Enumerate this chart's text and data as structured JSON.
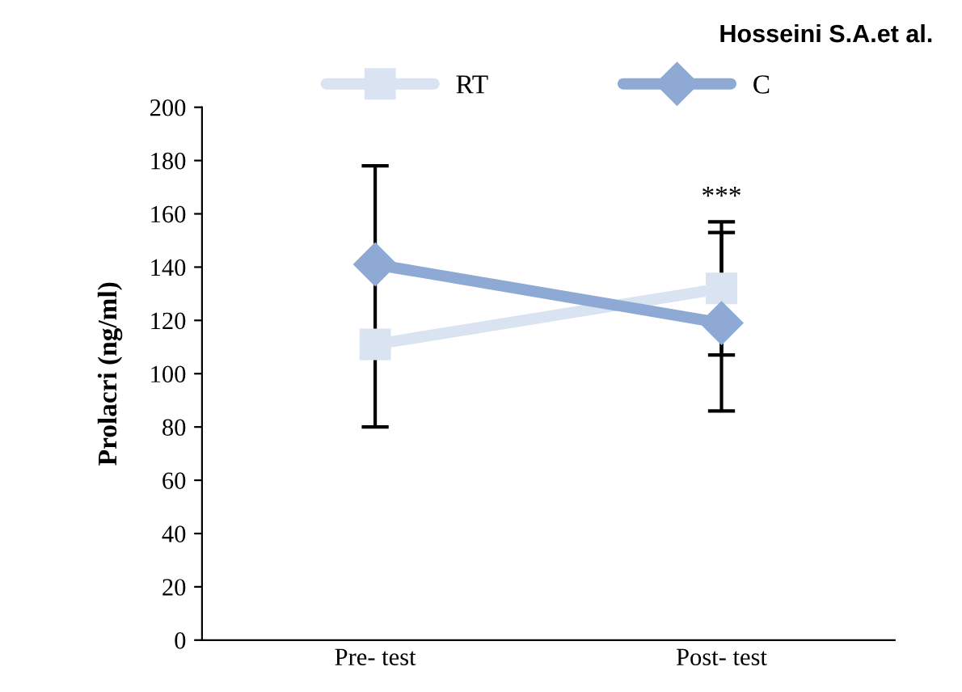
{
  "chart_data": {
    "type": "line",
    "ylabel": "Prolacri (ng/ml)",
    "categories": [
      "Pre- test",
      "Post- test"
    ],
    "series": [
      {
        "name": "RT",
        "color": "#dae3f1",
        "marker": "square",
        "values": [
          111,
          132
        ],
        "errors": [
          [
            80,
            111
          ],
          [
            107,
            157
          ]
        ]
      },
      {
        "name": "C",
        "color": "#8eaad4",
        "marker": "diamond",
        "values": [
          141,
          119
        ],
        "errors": [
          [
            106,
            178
          ],
          [
            86,
            153
          ]
        ]
      }
    ],
    "ylim": [
      0,
      200
    ],
    "yticks": [
      0,
      20,
      40,
      60,
      80,
      100,
      120,
      140,
      160,
      180,
      200
    ],
    "grid": false,
    "legend": "top",
    "line_style": "solid",
    "annotations": [
      "Hosseini S.A.et al.",
      "***"
    ]
  }
}
